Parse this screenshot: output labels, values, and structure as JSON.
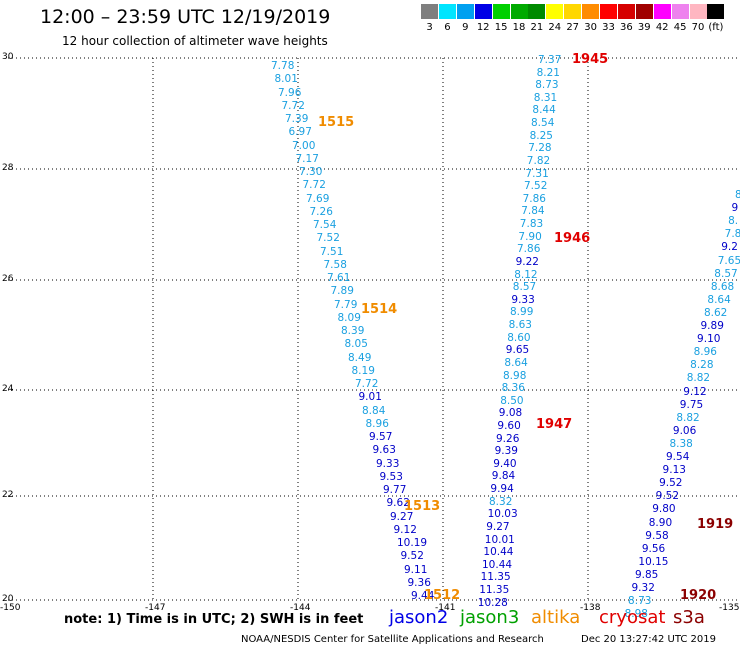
{
  "header": {
    "title": "12:00 – 23:59 UTC 12/19/2019",
    "subtitle": "12 hour collection of altimeter wave heights"
  },
  "scale": [
    {
      "label": "3",
      "color": "#7f7f7f"
    },
    {
      "label": "6",
      "color": "#00e5ff"
    },
    {
      "label": "9",
      "color": "#00a0f0"
    },
    {
      "label": "12",
      "color": "#0000e6"
    },
    {
      "label": "15",
      "color": "#00d000"
    },
    {
      "label": "18",
      "color": "#00aa00"
    },
    {
      "label": "21",
      "color": "#008a00"
    },
    {
      "label": "24",
      "color": "#ffff00"
    },
    {
      "label": "27",
      "color": "#ffd700"
    },
    {
      "label": "30",
      "color": "#ff8c00"
    },
    {
      "label": "33",
      "color": "#ff0000"
    },
    {
      "label": "36",
      "color": "#d60000"
    },
    {
      "label": "39",
      "color": "#a00000"
    },
    {
      "label": "42",
      "color": "#ff00ff"
    },
    {
      "label": "45",
      "color": "#ee82ee"
    },
    {
      "label": "70",
      "color": "#ffb6c1"
    },
    {
      "label": "(ft)",
      "color": "#000000"
    }
  ],
  "axes": {
    "lon_labels": [
      "-150",
      "-147",
      "-144",
      "-141",
      "-138",
      "-135"
    ],
    "lat_labels": [
      "30",
      "28",
      "26",
      "24",
      "22",
      "20"
    ]
  },
  "tracks": [
    {
      "values": [
        "7.78",
        "8.01",
        "7.96",
        "7.72",
        "7.39",
        "6.97",
        "7.00",
        "7.17",
        "7.30",
        "7.72",
        "7.69",
        "7.26",
        "7.54",
        "7.52",
        "7.51",
        "7.58",
        "7.61",
        "7.89",
        "7.79",
        "8.09",
        "8.39",
        "8.05",
        "8.49",
        "8.19",
        "7.72",
        "9.01",
        "8.84",
        "8.96",
        "9.57",
        "9.63",
        "9.33",
        "9.53",
        "9.77",
        "9.62",
        "9.27",
        "9.12",
        "10.19",
        "9.52",
        "9.11",
        "9.36",
        "9.44"
      ],
      "colors": [
        "#1aa0e0",
        "#1aa0e0",
        "#1aa0e0",
        "#1aa0e0",
        "#1aa0e0",
        "#1aa0e0",
        "#1aa0e0",
        "#1aa0e0",
        "#1aa0e0",
        "#1aa0e0",
        "#1aa0e0",
        "#1aa0e0",
        "#1aa0e0",
        "#1aa0e0",
        "#1aa0e0",
        "#1aa0e0",
        "#1aa0e0",
        "#1aa0e0",
        "#1aa0e0",
        "#1aa0e0",
        "#1aa0e0",
        "#1aa0e0",
        "#1aa0e0",
        "#1aa0e0",
        "#1aa0e0",
        "#0000c8",
        "#1aa0e0",
        "#1aa0e0",
        "#0000c8",
        "#0000c8",
        "#0000c8",
        "#0000c8",
        "#0000c8",
        "#0000c8",
        "#0000c8",
        "#0000c8",
        "#0000c8",
        "#0000c8",
        "#0000c8",
        "#0000c8",
        "#0000c8"
      ]
    },
    {
      "values": [
        "7.37",
        "8.21",
        "8.73",
        "8.31",
        "8.44",
        "8.54",
        "8.25",
        "7.28",
        "7.82",
        "7.31",
        "7.52",
        "7.86",
        "7.84",
        "7.83",
        "7.90",
        "7.86",
        "9.22",
        "8.12",
        "8.57",
        "9.33",
        "8.99",
        "8.63",
        "8.60",
        "9.65",
        "8.64",
        "8.98",
        "8.36",
        "8.50",
        "9.08",
        "9.60",
        "9.26",
        "9.39",
        "9.40",
        "9.84",
        "9.94",
        "8.32",
        "10.03",
        "9.27",
        "10.01",
        "10.44",
        "10.44",
        "11.35",
        "11.35",
        "10.28"
      ],
      "colors": [
        "#1aa0e0",
        "#1aa0e0",
        "#1aa0e0",
        "#1aa0e0",
        "#1aa0e0",
        "#1aa0e0",
        "#1aa0e0",
        "#1aa0e0",
        "#1aa0e0",
        "#1aa0e0",
        "#1aa0e0",
        "#1aa0e0",
        "#1aa0e0",
        "#1aa0e0",
        "#1aa0e0",
        "#1aa0e0",
        "#0000c8",
        "#1aa0e0",
        "#1aa0e0",
        "#0000c8",
        "#1aa0e0",
        "#1aa0e0",
        "#1aa0e0",
        "#0000c8",
        "#1aa0e0",
        "#1aa0e0",
        "#1aa0e0",
        "#1aa0e0",
        "#0000c8",
        "#0000c8",
        "#0000c8",
        "#0000c8",
        "#0000c8",
        "#0000c8",
        "#0000c8",
        "#1aa0e0",
        "#0000c8",
        "#0000c8",
        "#0000c8",
        "#0000c8",
        "#0000c8",
        "#0000c8",
        "#0000c8",
        "#0000c8"
      ]
    },
    {
      "values": [
        "8",
        "9",
        "8.",
        "7.8",
        "9.2",
        "7.65",
        "8.57",
        "8.68",
        "8.64",
        "8.62",
        "9.89",
        "9.10",
        "8.96",
        "8.28",
        "8.82",
        "9.12",
        "9.75",
        "8.82",
        "9.06",
        "8.38",
        "9.54",
        "9.13",
        "9.52",
        "9.52",
        "9.80",
        "8.90",
        "9.58",
        "9.56",
        "10.15",
        "9.85",
        "9.32",
        "8.73",
        "8.98"
      ],
      "colors": [
        "#1aa0e0",
        "#0000c8",
        "#1aa0e0",
        "#1aa0e0",
        "#0000c8",
        "#1aa0e0",
        "#1aa0e0",
        "#1aa0e0",
        "#1aa0e0",
        "#1aa0e0",
        "#0000c8",
        "#0000c8",
        "#1aa0e0",
        "#1aa0e0",
        "#1aa0e0",
        "#0000c8",
        "#0000c8",
        "#1aa0e0",
        "#0000c8",
        "#1aa0e0",
        "#0000c8",
        "#0000c8",
        "#0000c8",
        "#0000c8",
        "#0000c8",
        "#0000c8",
        "#0000c8",
        "#0000c8",
        "#0000c8",
        "#0000c8",
        "#0000c8",
        "#1aa0e0",
        "#1aa0e0"
      ]
    }
  ],
  "time_labels": [
    {
      "text": "1945",
      "color": "#e00000"
    },
    {
      "text": "1515",
      "color": "#f08c00"
    },
    {
      "text": "1946",
      "color": "#e00000"
    },
    {
      "text": "1514",
      "color": "#f08c00"
    },
    {
      "text": "1947",
      "color": "#e00000"
    },
    {
      "text": "1513",
      "color": "#f08c00"
    },
    {
      "text": "1512",
      "color": "#f08c00"
    },
    {
      "text": "1919",
      "color": "#8b0000"
    },
    {
      "text": "1920",
      "color": "#8b0000"
    }
  ],
  "note": "note: 1) Time is in UTC; 2) SWH is in feet",
  "legend": [
    {
      "label": "jason2",
      "color": "#0000e6"
    },
    {
      "label": "jason3",
      "color": "#00a000"
    },
    {
      "label": "altika",
      "color": "#f08c00"
    },
    {
      "label": "cryosat",
      "color": "#e00000"
    },
    {
      "label": "s3a",
      "color": "#8b0000"
    }
  ],
  "footer": {
    "credit": "NOAA/NESDIS Center for Satellite Applications and Research",
    "timestamp": "Dec 20 13:27:42 UTC 2019"
  }
}
